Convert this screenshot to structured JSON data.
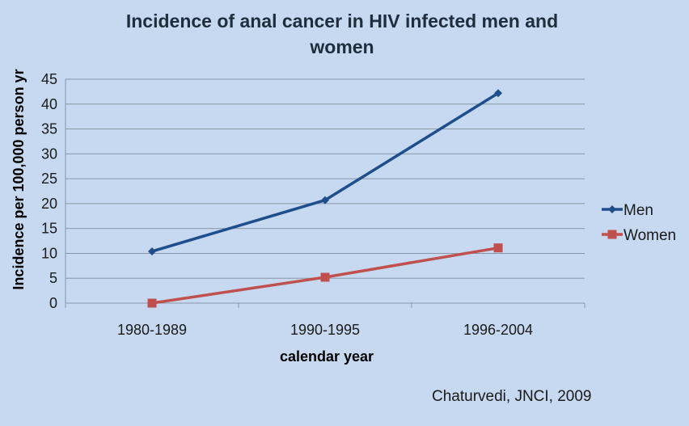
{
  "chart_data": {
    "type": "line",
    "title_lines": [
      "Incidence of anal cancer in HIV infected men and",
      "women"
    ],
    "xlabel": "calendar year",
    "ylabel": "Incidence per 100,000 person yr",
    "categories": [
      "1980-1989",
      "1990-1995",
      "1996-2004"
    ],
    "ylim": [
      0,
      45
    ],
    "yticks": [
      0,
      5,
      10,
      15,
      20,
      25,
      30,
      35,
      40,
      45
    ],
    "grid": true,
    "legend_position": "right",
    "series": [
      {
        "name": "Men",
        "values": [
          10.4,
          20.7,
          42.2
        ],
        "color": "#1f4e8c",
        "marker": "diamond"
      },
      {
        "name": "Women",
        "values": [
          0,
          5.2,
          11.1
        ],
        "color": "#c0504d",
        "marker": "square"
      }
    ]
  },
  "citation": "Chaturvedi, JNCI, 2009"
}
